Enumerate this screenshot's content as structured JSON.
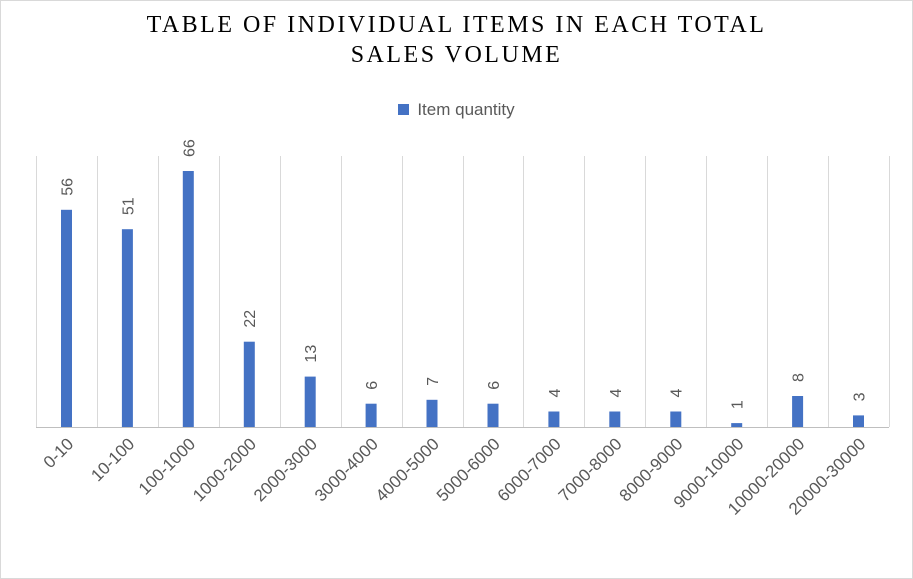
{
  "chart_data": {
    "type": "bar",
    "title_lines": [
      "TABLE OF INDIVIDUAL ITEMS IN EACH TOTAL",
      "SALES VOLUME"
    ],
    "categories": [
      "0-10",
      "10-100",
      "100-1000",
      "1000-2000",
      "2000-3000",
      "3000-4000",
      "4000-5000",
      "5000-6000",
      "6000-7000",
      "7000-8000",
      "8000-9000",
      "9000-10000",
      "10000-20000",
      "20000-30000"
    ],
    "series": [
      {
        "name": "Item quantity",
        "values": [
          56,
          51,
          66,
          22,
          13,
          6,
          7,
          6,
          4,
          4,
          4,
          1,
          8,
          3
        ]
      }
    ],
    "ylim": [
      0,
      66
    ],
    "grid": "vertical",
    "legend_position": "top",
    "data_labels": true,
    "bar_color": "#4472c4",
    "xlabel": "",
    "ylabel": ""
  }
}
